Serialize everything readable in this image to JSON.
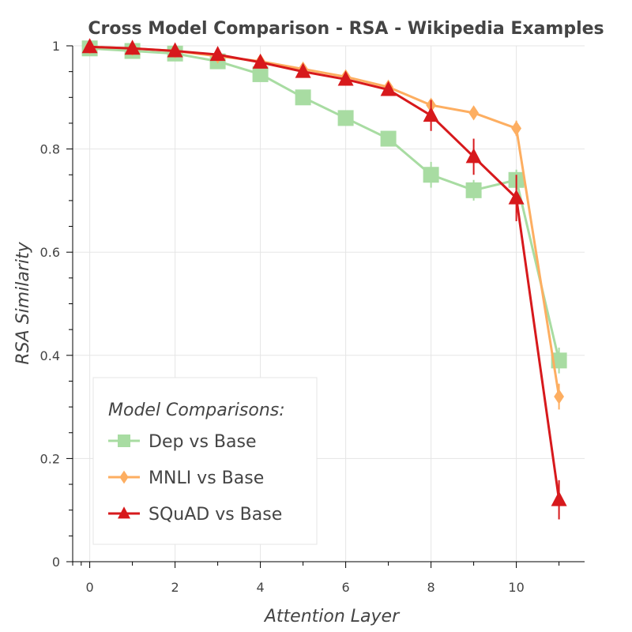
{
  "chart_data": {
    "type": "line",
    "title": "Cross Model Comparison - RSA - Wikipedia Examples",
    "xlabel": "Attention Layer",
    "ylabel": "RSA Similarity",
    "xlim": [
      -0.4,
      11.6
    ],
    "ylim": [
      0,
      1
    ],
    "x_ticks": [
      0,
      2,
      4,
      6,
      8,
      10
    ],
    "x_tick_labels": [
      "0",
      "2",
      "4",
      "6",
      "8",
      "10"
    ],
    "y_ticks": [
      0,
      0.2,
      0.4,
      0.6,
      0.8,
      1
    ],
    "y_tick_labels": [
      "0",
      "0.2",
      "0.4",
      "0.6",
      "0.8",
      "1"
    ],
    "grid": true,
    "legend": {
      "title": "Model Comparisons:",
      "placement": "bottom-left"
    },
    "x": [
      0,
      1,
      2,
      3,
      4,
      5,
      6,
      7,
      8,
      9,
      10,
      11
    ],
    "series": [
      {
        "name": "Dep vs Base",
        "marker": "square",
        "color": "#a8dca2",
        "values": [
          0.995,
          0.99,
          0.985,
          0.97,
          0.945,
          0.9,
          0.86,
          0.82,
          0.75,
          0.72,
          0.74,
          0.39
        ],
        "errors": [
          0.005,
          0.005,
          0.005,
          0.005,
          0.006,
          0.006,
          0.008,
          0.008,
          0.025,
          0.02,
          0.02,
          0.025
        ]
      },
      {
        "name": "MNLI vs Base",
        "marker": "diamond",
        "color": "#fdae61",
        "values": [
          0.998,
          0.995,
          0.99,
          0.98,
          0.97,
          0.955,
          0.94,
          0.92,
          0.885,
          0.87,
          0.84,
          0.32
        ],
        "errors": [
          0.003,
          0.003,
          0.003,
          0.004,
          0.004,
          0.005,
          0.005,
          0.006,
          0.008,
          0.008,
          0.015,
          0.025
        ]
      },
      {
        "name": "SQuAD vs Base",
        "marker": "triangle",
        "color": "#d7191c",
        "values": [
          0.998,
          0.995,
          0.99,
          0.983,
          0.968,
          0.95,
          0.935,
          0.915,
          0.865,
          0.785,
          0.705,
          0.12
        ],
        "errors": [
          0.003,
          0.003,
          0.003,
          0.004,
          0.005,
          0.006,
          0.007,
          0.008,
          0.03,
          0.035,
          0.045,
          0.038
        ]
      }
    ]
  }
}
